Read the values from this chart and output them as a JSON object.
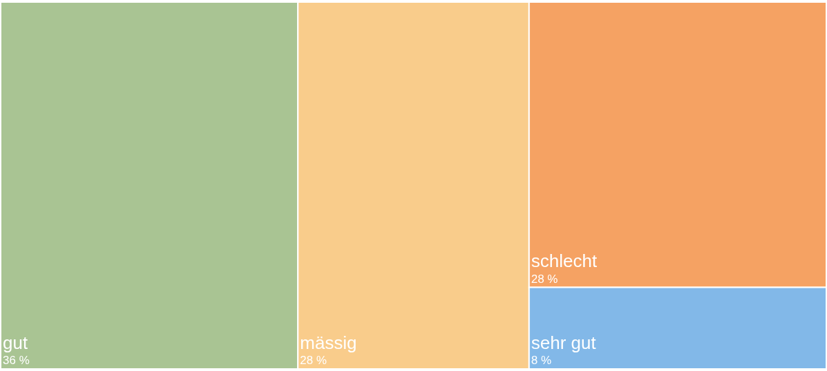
{
  "chart_data": {
    "type": "other",
    "categories": [
      "gut",
      "mässig",
      "schlecht",
      "sehr gut"
    ],
    "values": [
      36,
      28,
      28,
      8
    ],
    "colors": [
      "#a9c493",
      "#f9cc8b",
      "#f5a263",
      "#82b8e8"
    ],
    "value_labels": [
      "36 %",
      "28 %",
      "28 %",
      "8 %"
    ]
  }
}
